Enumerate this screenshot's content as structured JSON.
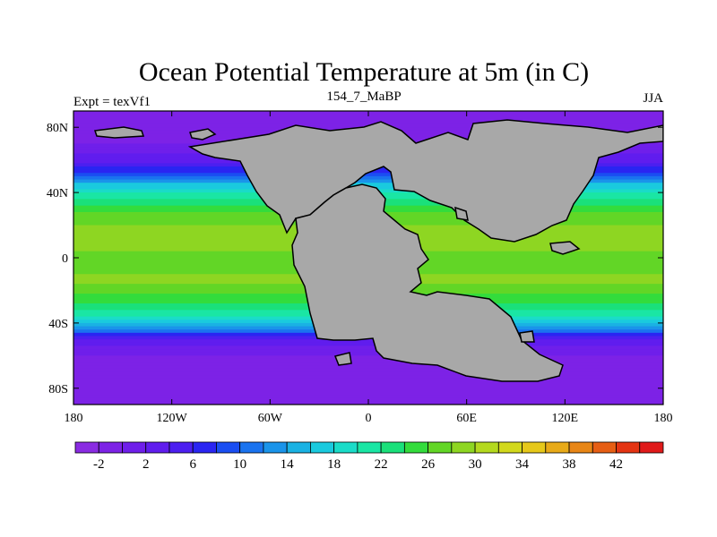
{
  "chart_data": {
    "type": "heatmap",
    "title": "Ocean Potential Temperature at 5m (in C)",
    "left_label": "Expt = texVf1",
    "center_label": "154_7_MaBP",
    "right_label": "JJA",
    "xlabel": "",
    "ylabel": "",
    "xlim": [
      -180,
      180
    ],
    "ylim": [
      -90,
      90
    ],
    "x_ticks": [
      {
        "value": -180,
        "label": "180"
      },
      {
        "value": -120,
        "label": "120W"
      },
      {
        "value": -60,
        "label": "60W"
      },
      {
        "value": 0,
        "label": "0"
      },
      {
        "value": 60,
        "label": "60E"
      },
      {
        "value": 120,
        "label": "120E"
      },
      {
        "value": 180,
        "label": "180"
      }
    ],
    "y_ticks": [
      {
        "value": 80,
        "label": "80N"
      },
      {
        "value": 40,
        "label": "40N"
      },
      {
        "value": 0,
        "label": "0"
      },
      {
        "value": -40,
        "label": "40S"
      },
      {
        "value": -80,
        "label": "80S"
      }
    ],
    "zonal_profile": {
      "description_lat": [
        90,
        80,
        70,
        60,
        50,
        45,
        40,
        35,
        30,
        25,
        20,
        15,
        10,
        5,
        0,
        -5,
        -10,
        -15,
        -20,
        -25,
        -30,
        -35,
        -40,
        -45,
        -50,
        -55,
        -60,
        -70,
        -80,
        -90
      ],
      "temperature_c": [
        -1,
        -1,
        0,
        3,
        10,
        16,
        20,
        23,
        25,
        27,
        28,
        29,
        29,
        28,
        27,
        27,
        28,
        28,
        27,
        25,
        23,
        20,
        16,
        10,
        4,
        1,
        0,
        -1,
        -1,
        -1
      ]
    },
    "colorbar": {
      "min": -4,
      "step": 2,
      "colors": [
        "#8a2be2",
        "#7d22e6",
        "#6f1fea",
        "#601dee",
        "#4c1ff0",
        "#2a25f2",
        "#1a4ef2",
        "#1a73ef",
        "#1a94ea",
        "#1ab2e3",
        "#1acade",
        "#1adcc8",
        "#1ae6a4",
        "#1ae07a",
        "#33dc3c",
        "#62d626",
        "#8ed622",
        "#b4d91e",
        "#d2d81c",
        "#e6c81a",
        "#e8aa18",
        "#e88616",
        "#e65e14",
        "#e43412",
        "#e01a1a"
      ],
      "labels": [
        {
          "value": -2,
          "label": "-2"
        },
        {
          "value": 2,
          "label": "2"
        },
        {
          "value": 6,
          "label": "6"
        },
        {
          "value": 10,
          "label": "10"
        },
        {
          "value": 14,
          "label": "14"
        },
        {
          "value": 18,
          "label": "18"
        },
        {
          "value": 22,
          "label": "22"
        },
        {
          "value": 26,
          "label": "26"
        },
        {
          "value": 30,
          "label": "30"
        },
        {
          "value": 34,
          "label": "34"
        },
        {
          "value": 38,
          "label": "38"
        },
        {
          "value": 42,
          "label": "42"
        }
      ]
    },
    "land_color": "#a8a8a8"
  }
}
